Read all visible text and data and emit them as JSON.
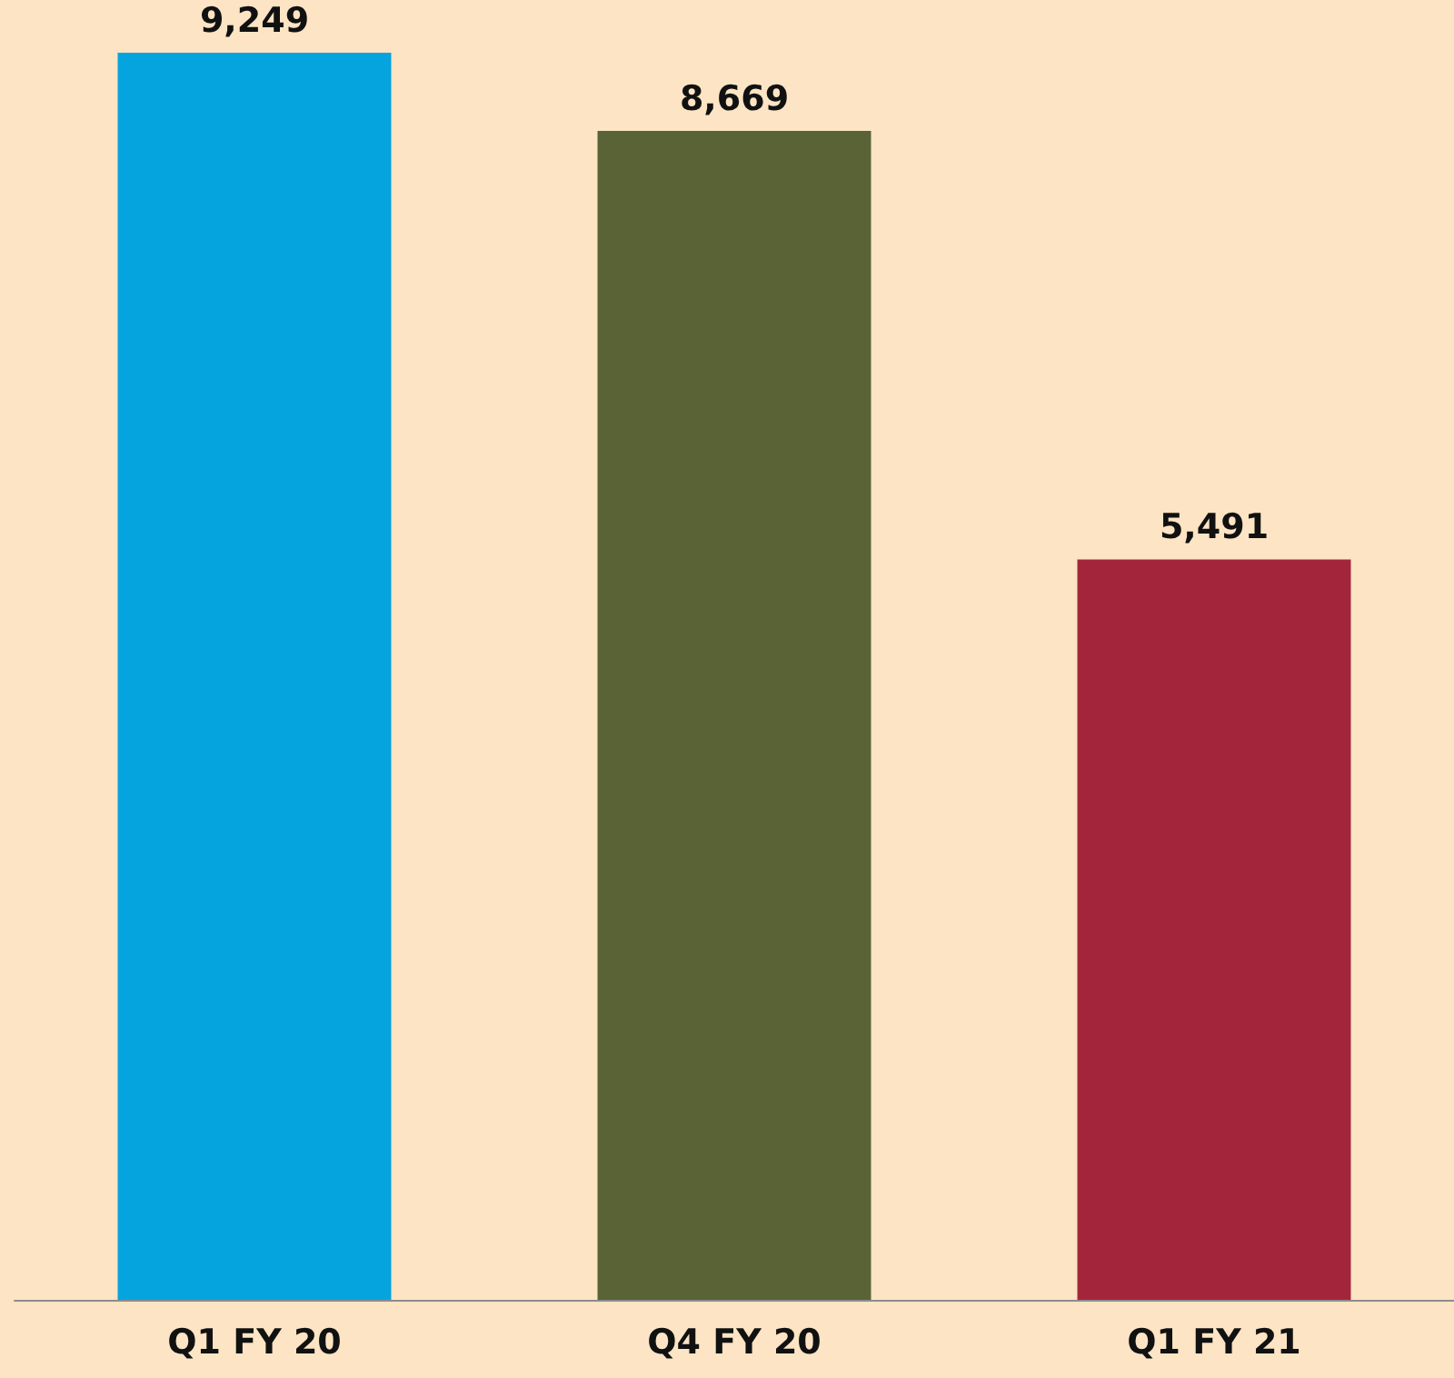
{
  "chart_data": {
    "type": "bar",
    "categories": [
      "Q1 FY 20",
      "Q4 FY 20",
      "Q1 FY 21"
    ],
    "values": [
      9249,
      8669,
      5491
    ],
    "colors": [
      "#06a4df",
      "#5a6336",
      "#a3253b"
    ],
    "value_labels": [
      "9,249",
      "8,669",
      "5,491"
    ],
    "grid": false
  }
}
